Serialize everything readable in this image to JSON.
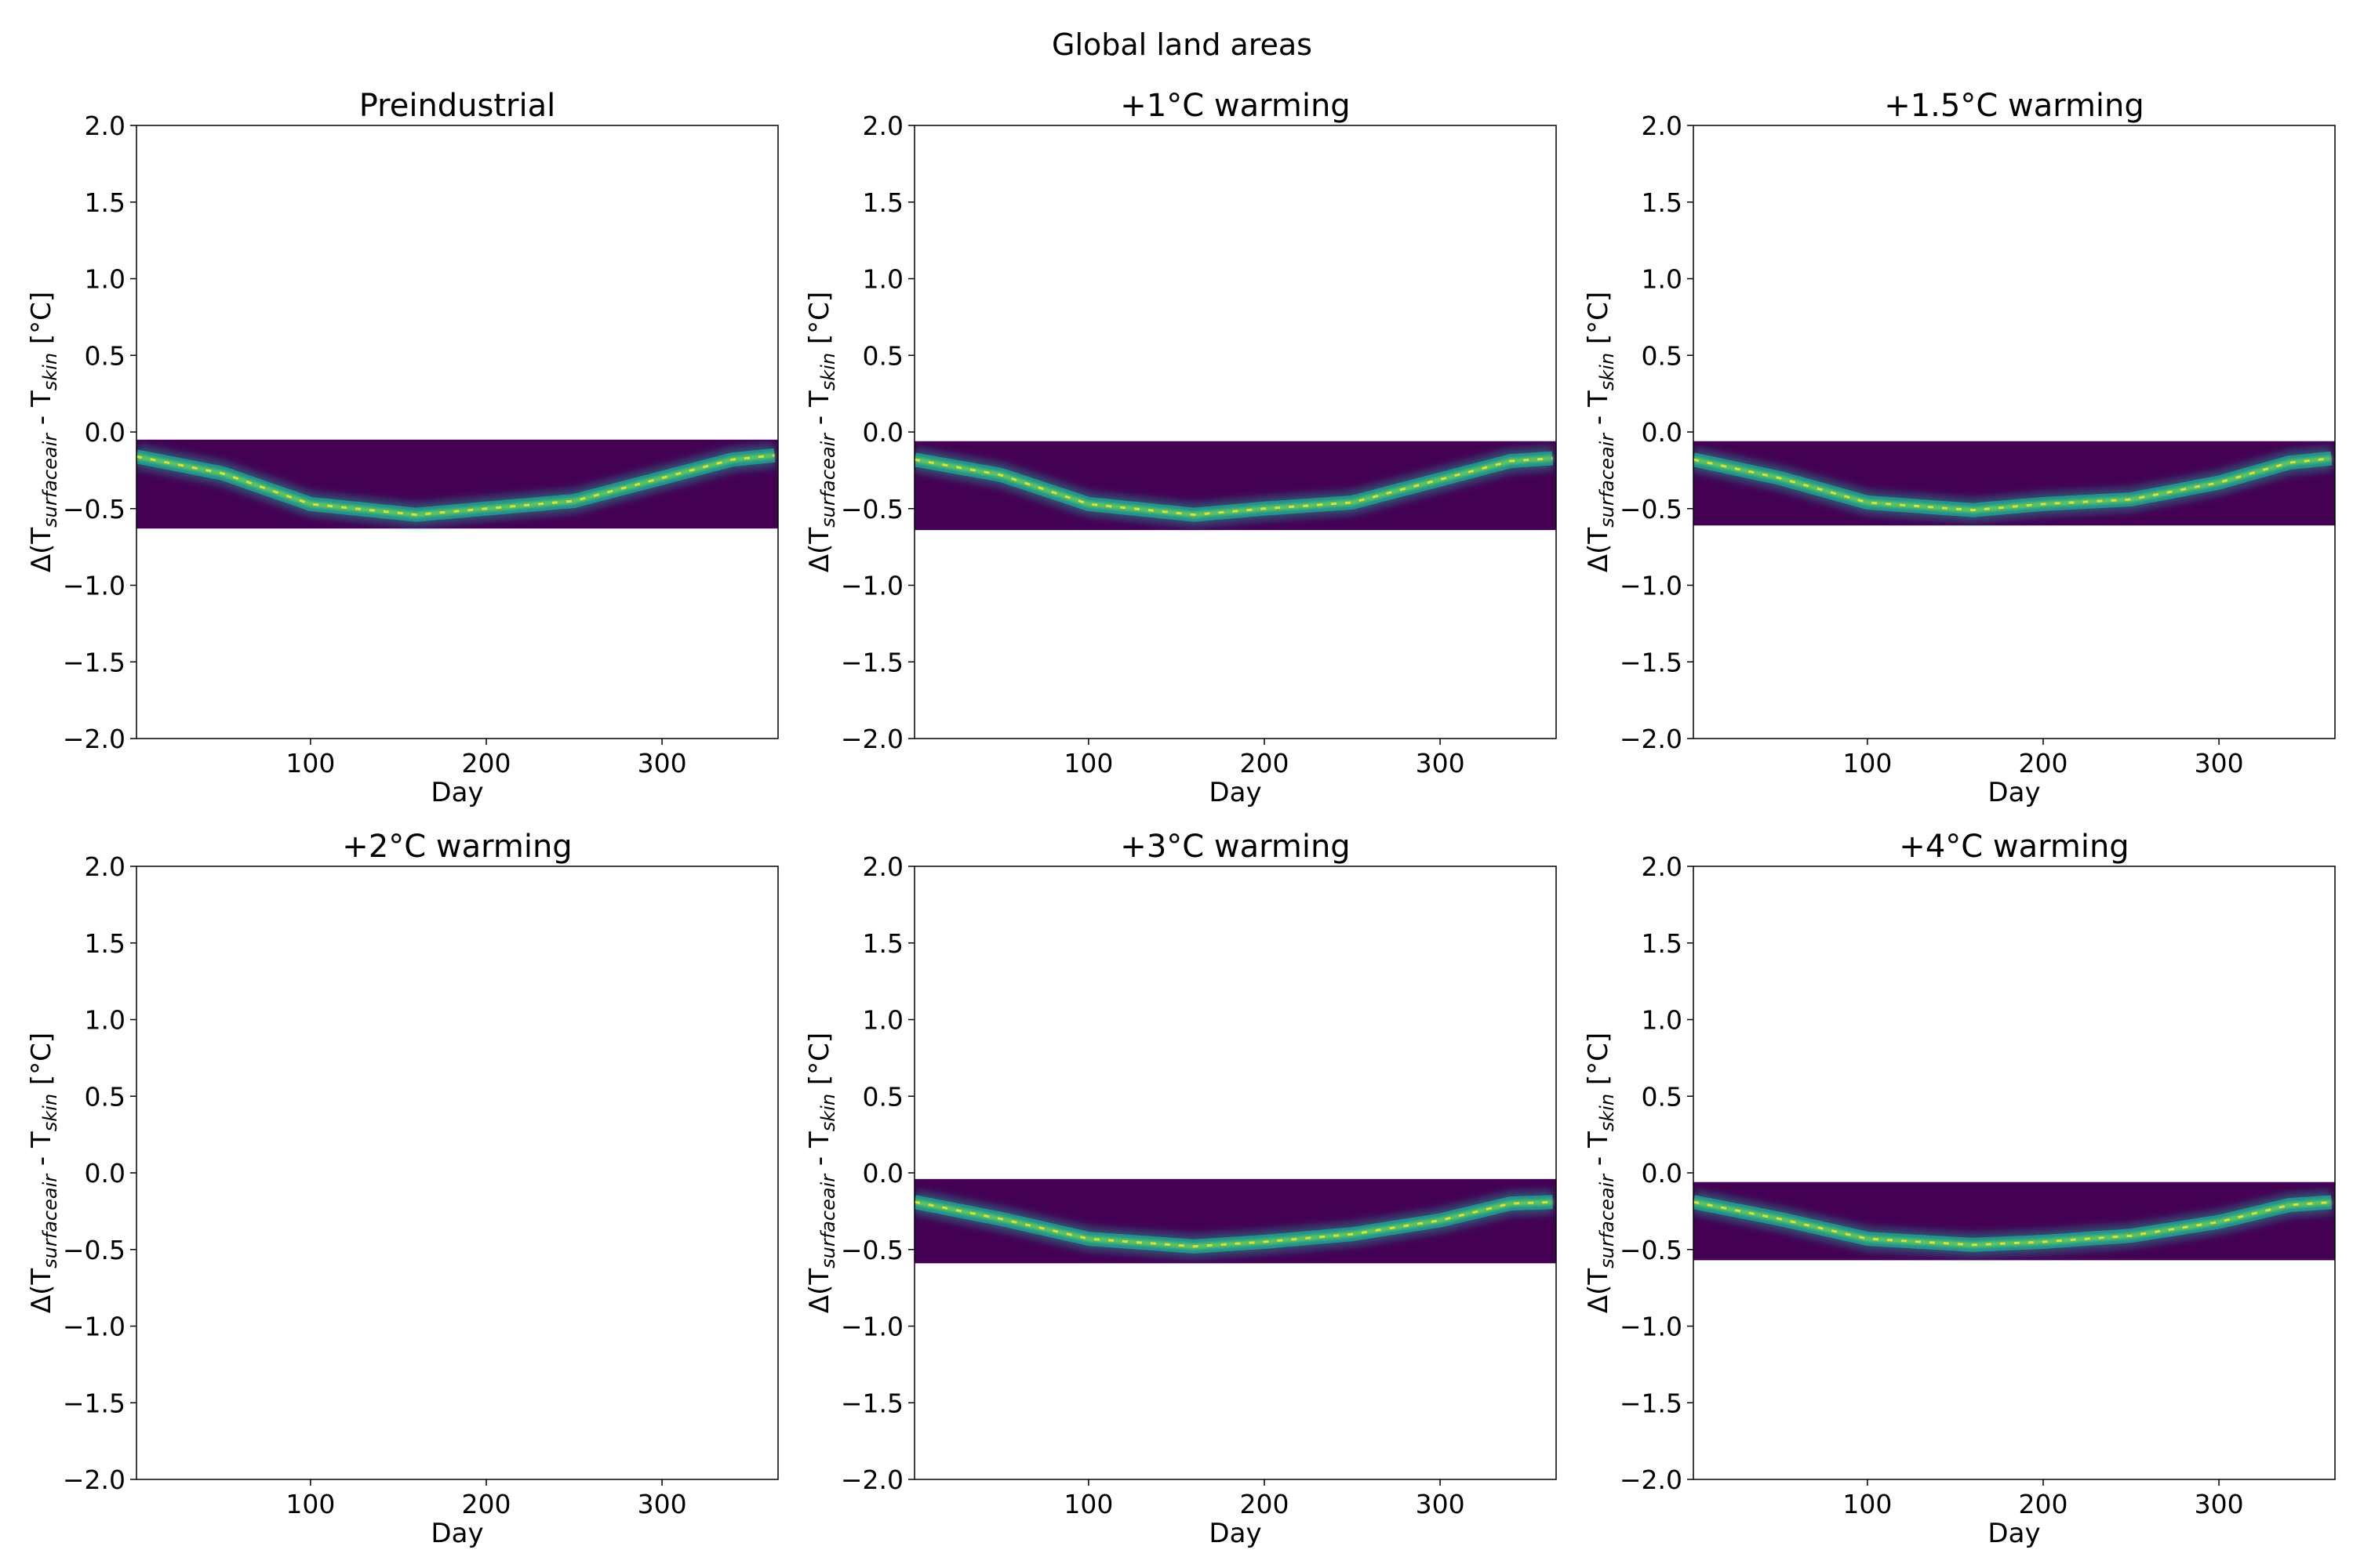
{
  "figure": {
    "suptitle": "Global land areas"
  },
  "colors": {
    "background": "#440154",
    "band_mid": "#21918c",
    "band_core": "#5ec962",
    "band_peak": "#fde725",
    "axes": "#000000"
  },
  "chart_data": [
    {
      "type": "heatmap",
      "title": "Preindustrial",
      "xlabel": "Day",
      "ylabel": {
        "prefix": "Δ(T",
        "sub1": "surfaceair",
        "mid": " - T",
        "sub2": "skin",
        "suffix": " [°C]"
      },
      "xlim": [
        1,
        366
      ],
      "ylim": [
        -2.0,
        2.0
      ],
      "xticks": [
        "100",
        "200",
        "300"
      ],
      "yticks": [
        "2.0",
        "1.5",
        "1.0",
        "0.5",
        "0.0",
        "−0.5",
        "−1.0",
        "−1.5",
        "−2.0"
      ],
      "colormap": "viridis",
      "data_range": [
        -0.63,
        -0.05
      ],
      "ridge": {
        "day": [
          1,
          50,
          100,
          160,
          200,
          250,
          300,
          340,
          366
        ],
        "value": [
          -0.16,
          -0.27,
          -0.47,
          -0.54,
          -0.5,
          -0.45,
          -0.3,
          -0.18,
          -0.15
        ]
      }
    },
    {
      "type": "heatmap",
      "title": "+1°C warming",
      "xlabel": "Day",
      "ylabel": {
        "prefix": "Δ(T",
        "sub1": "surfaceair",
        "mid": " - T",
        "sub2": "skin",
        "suffix": " [°C]"
      },
      "xlim": [
        1,
        366
      ],
      "ylim": [
        -2.0,
        2.0
      ],
      "xticks": [
        "100",
        "200",
        "300"
      ],
      "yticks": [
        "2.0",
        "1.5",
        "1.0",
        "0.5",
        "0.0",
        "−0.5",
        "−1.0",
        "−1.5",
        "−2.0"
      ],
      "colormap": "viridis",
      "data_range": [
        -0.64,
        -0.06
      ],
      "ridge": {
        "day": [
          1,
          50,
          100,
          160,
          200,
          250,
          300,
          340,
          366
        ],
        "value": [
          -0.18,
          -0.28,
          -0.47,
          -0.54,
          -0.5,
          -0.46,
          -0.31,
          -0.19,
          -0.17
        ]
      }
    },
    {
      "type": "heatmap",
      "title": "+1.5°C warming",
      "xlabel": "Day",
      "ylabel": {
        "prefix": "Δ(T",
        "sub1": "surfaceair",
        "mid": " - T",
        "sub2": "skin",
        "suffix": " [°C]"
      },
      "xlim": [
        1,
        366
      ],
      "ylim": [
        -2.0,
        2.0
      ],
      "xticks": [
        "100",
        "200",
        "300"
      ],
      "yticks": [
        "2.0",
        "1.5",
        "1.0",
        "0.5",
        "0.0",
        "−0.5",
        "−1.0",
        "−1.5",
        "−2.0"
      ],
      "colormap": "viridis",
      "data_range": [
        -0.61,
        -0.06
      ],
      "ridge": {
        "day": [
          1,
          50,
          100,
          160,
          200,
          250,
          300,
          340,
          366
        ],
        "value": [
          -0.18,
          -0.3,
          -0.46,
          -0.51,
          -0.47,
          -0.44,
          -0.33,
          -0.2,
          -0.17
        ]
      }
    },
    {
      "type": "heatmap",
      "title": "+2°C warming",
      "xlabel": "Day",
      "ylabel": {
        "prefix": "Δ(T",
        "sub1": "surfaceair",
        "mid": " - T",
        "sub2": "skin",
        "suffix": " [°C]"
      },
      "xlim": [
        1,
        366
      ],
      "ylim": [
        -2.0,
        2.0
      ],
      "xticks": [
        "100",
        "200",
        "300"
      ],
      "yticks": [
        "2.0",
        "1.5",
        "1.0",
        "0.5",
        "0.0",
        "−0.5",
        "−1.0",
        "−1.5",
        "−2.0"
      ],
      "colormap": "viridis",
      "data_range": null,
      "ridge": null
    },
    {
      "type": "heatmap",
      "title": "+3°C warming",
      "xlabel": "Day",
      "ylabel": {
        "prefix": "Δ(T",
        "sub1": "surfaceair",
        "mid": " - T",
        "sub2": "skin",
        "suffix": " [°C]"
      },
      "xlim": [
        1,
        366
      ],
      "ylim": [
        -2.0,
        2.0
      ],
      "xticks": [
        "100",
        "200",
        "300"
      ],
      "yticks": [
        "2.0",
        "1.5",
        "1.0",
        "0.5",
        "0.0",
        "−0.5",
        "−1.0",
        "−1.5",
        "−2.0"
      ],
      "colormap": "viridis",
      "data_range": [
        -0.59,
        -0.04
      ],
      "ridge": {
        "day": [
          1,
          50,
          100,
          160,
          200,
          250,
          300,
          340,
          366
        ],
        "value": [
          -0.19,
          -0.3,
          -0.43,
          -0.48,
          -0.45,
          -0.4,
          -0.31,
          -0.2,
          -0.19
        ]
      }
    },
    {
      "type": "heatmap",
      "title": "+4°C warming",
      "xlabel": "Day",
      "ylabel": {
        "prefix": "Δ(T",
        "sub1": "surfaceair",
        "mid": " - T",
        "sub2": "skin",
        "suffix": " [°C]"
      },
      "xlim": [
        1,
        366
      ],
      "ylim": [
        -2.0,
        2.0
      ],
      "xticks": [
        "100",
        "200",
        "300"
      ],
      "yticks": [
        "2.0",
        "1.5",
        "1.0",
        "0.5",
        "0.0",
        "−0.5",
        "−1.0",
        "−1.5",
        "−2.0"
      ],
      "colormap": "viridis",
      "data_range": [
        -0.57,
        -0.06
      ],
      "ridge": {
        "day": [
          1,
          50,
          100,
          160,
          200,
          250,
          300,
          340,
          366
        ],
        "value": [
          -0.19,
          -0.3,
          -0.43,
          -0.47,
          -0.45,
          -0.41,
          -0.32,
          -0.21,
          -0.19
        ]
      }
    }
  ]
}
